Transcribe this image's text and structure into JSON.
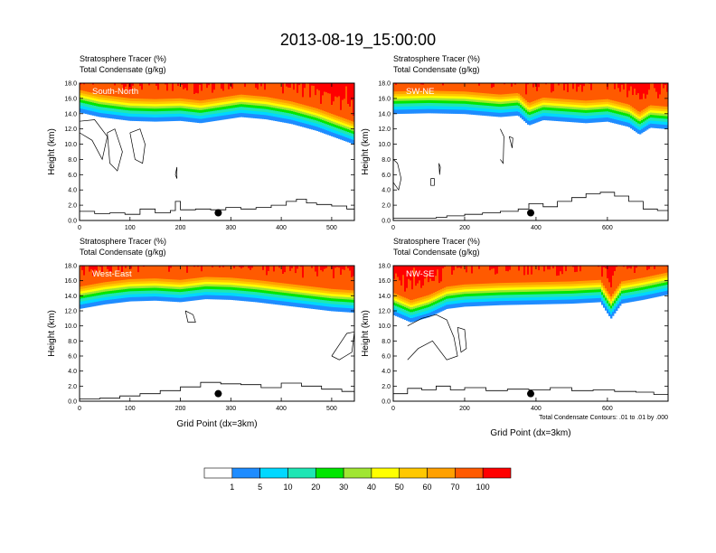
{
  "figure": {
    "title": "2013-08-19_15:00:00",
    "footnote": "Total Condensate Contours: .01 to .01 by .000"
  },
  "colors": {
    "scale": [
      "#ffffff",
      "#1e8cff",
      "#00d8ff",
      "#1ee6b4",
      "#00e600",
      "#a0e632",
      "#ffff00",
      "#ffc800",
      "#ffa000",
      "#ff5a00",
      "#ff0000"
    ]
  },
  "colorbar": {
    "labels": [
      "1",
      "5",
      "10",
      "20",
      "30",
      "40",
      "50",
      "60",
      "70",
      "100"
    ]
  },
  "chart_data": [
    {
      "type": "heatmap",
      "panel_label": "South-North",
      "subtitle_1": "Stratosphere Tracer   (%)",
      "subtitle_2": "Total Condensate   (g/kg)",
      "ylabel": "Height (km)",
      "xlabel": "",
      "xlim": [
        0,
        545
      ],
      "ylim": [
        0,
        18
      ],
      "x_ticks": [
        0,
        100,
        200,
        300,
        400,
        500
      ],
      "y_ticks": [
        "0.0",
        "2.0",
        "4.0",
        "6.0",
        "8.0",
        "10.0",
        "12.0",
        "14.0",
        "16.0",
        "18.0"
      ],
      "tropopause": {
        "x": [
          0,
          40,
          100,
          150,
          200,
          240,
          280,
          320,
          370,
          420,
          470,
          520,
          545
        ],
        "y": [
          14.2,
          13.6,
          13.1,
          13.0,
          13.1,
          12.8,
          13.2,
          13.6,
          13.3,
          12.7,
          11.8,
          10.6,
          10.0
        ]
      },
      "terrain": {
        "x": [
          0,
          30,
          60,
          90,
          120,
          150,
          180,
          190,
          200,
          230,
          260,
          290,
          320,
          350,
          380,
          410,
          430,
          450,
          470,
          500,
          530,
          545
        ],
        "y": [
          1.2,
          0.9,
          1.0,
          0.8,
          1.5,
          1.0,
          1.3,
          2.5,
          1.4,
          1.5,
          1.4,
          1.7,
          1.5,
          1.7,
          2.0,
          2.5,
          2.8,
          2.3,
          2.1,
          1.9,
          1.5,
          1.6
        ]
      },
      "marker": {
        "x": 275,
        "y": 1.0
      },
      "contours": [
        {
          "x": [
            0,
            30,
            55,
            45,
            25,
            0
          ],
          "y": [
            13.0,
            13.2,
            11.0,
            8.0,
            10.5,
            11.5
          ]
        },
        {
          "x": [
            55,
            70,
            85,
            75,
            60,
            55
          ],
          "y": [
            11.5,
            12.0,
            9.0,
            6.5,
            7.5,
            11.5
          ]
        },
        {
          "x": [
            100,
            120,
            130,
            125,
            110,
            100
          ],
          "y": [
            11.5,
            12.0,
            10.0,
            7.5,
            8.0,
            11.5
          ]
        },
        {
          "x": [
            190,
            193,
            193,
            190
          ],
          "y": [
            6.0,
            7.0,
            5.5,
            6.0
          ]
        }
      ]
    },
    {
      "type": "heatmap",
      "panel_label": "SW-NE",
      "subtitle_1": "Stratosphere Tracer   (%)",
      "subtitle_2": "Total Condensate   (g/kg)",
      "ylabel": "Height (km)",
      "xlabel": "",
      "xlim": [
        0,
        770
      ],
      "ylim": [
        0,
        18
      ],
      "x_ticks": [
        0,
        200,
        400,
        600
      ],
      "y_ticks": [
        "0.0",
        "2.0",
        "4.0",
        "6.0",
        "8.0",
        "10.0",
        "12.0",
        "14.0",
        "16.0",
        "18.0"
      ],
      "tropopause": {
        "x": [
          0,
          100,
          200,
          300,
          350,
          380,
          420,
          480,
          540,
          600,
          660,
          690,
          720,
          770
        ],
        "y": [
          14.0,
          14.1,
          14.0,
          13.6,
          13.8,
          12.5,
          13.2,
          13.0,
          12.8,
          13.0,
          12.3,
          11.3,
          12.2,
          12.0
        ]
      },
      "terrain": {
        "x": [
          0,
          60,
          120,
          150,
          200,
          250,
          300,
          350,
          380,
          420,
          460,
          500,
          540,
          580,
          620,
          660,
          700,
          740,
          770
        ],
        "y": [
          0.3,
          0.3,
          0.4,
          0.6,
          0.8,
          1.0,
          1.2,
          1.5,
          2.2,
          1.8,
          2.5,
          3.0,
          3.5,
          3.7,
          3.2,
          2.5,
          1.5,
          1.3,
          1.0
        ]
      },
      "marker": {
        "x": 385,
        "y": 1.0
      },
      "contours": [
        {
          "x": [
            0,
            12,
            22,
            15,
            0
          ],
          "y": [
            8.0,
            7.5,
            5.5,
            4.0,
            5.0
          ]
        },
        {
          "x": [
            105,
            115,
            115,
            105,
            105
          ],
          "y": [
            5.5,
            5.5,
            4.6,
            4.6,
            5.5
          ]
        },
        {
          "x": [
            128,
            132,
            130,
            128
          ],
          "y": [
            7.5,
            7.0,
            6.0,
            7.5
          ]
        },
        {
          "x": [
            300,
            310,
            308,
            300
          ],
          "y": [
            12.0,
            11.0,
            7.5,
            8.0
          ]
        },
        {
          "x": [
            325,
            335,
            333,
            325
          ],
          "y": [
            11.0,
            10.8,
            9.5,
            11.0
          ]
        }
      ]
    },
    {
      "type": "heatmap",
      "panel_label": "West-East",
      "subtitle_1": "Stratosphere Tracer   (%)",
      "subtitle_2": "Total Condensate   (g/kg)",
      "ylabel": "Height (km)",
      "xlabel": "Grid Point (dx=3km)",
      "xlim": [
        0,
        545
      ],
      "ylim": [
        0,
        18
      ],
      "x_ticks": [
        0,
        100,
        200,
        300,
        400,
        500
      ],
      "y_ticks": [
        "0.0",
        "2.0",
        "4.0",
        "6.0",
        "8.0",
        "10.0",
        "12.0",
        "14.0",
        "16.0",
        "18.0"
      ],
      "tropopause": {
        "x": [
          0,
          50,
          100,
          150,
          200,
          250,
          300,
          350,
          400,
          450,
          500,
          545
        ],
        "y": [
          12.3,
          12.9,
          13.3,
          13.4,
          13.2,
          13.6,
          13.5,
          13.2,
          12.8,
          12.4,
          12.0,
          11.8
        ]
      },
      "terrain": {
        "x": [
          0,
          40,
          80,
          120,
          160,
          200,
          240,
          280,
          320,
          360,
          400,
          440,
          480,
          520,
          545
        ],
        "y": [
          0.3,
          0.4,
          0.7,
          1.0,
          1.4,
          1.9,
          2.5,
          2.3,
          2.2,
          1.8,
          2.4,
          2.0,
          1.6,
          1.3,
          1.2
        ]
      },
      "marker": {
        "x": 275,
        "y": 1.0
      },
      "contours": [
        {
          "x": [
            210,
            225,
            230,
            215,
            210
          ],
          "y": [
            12.0,
            11.5,
            10.5,
            10.5,
            12.0
          ]
        },
        {
          "x": [
            500,
            530,
            545,
            540,
            515,
            500
          ],
          "y": [
            6.0,
            9.0,
            9.2,
            6.5,
            5.5,
            6.0
          ]
        }
      ]
    },
    {
      "type": "heatmap",
      "panel_label": "NW-SE",
      "subtitle_1": "Stratosphere Tracer   (%)",
      "subtitle_2": "Total Condensate   (g/kg)",
      "ylabel": "Height (km)",
      "xlabel": "Grid Point (dx=3km)",
      "xlim": [
        0,
        770
      ],
      "ylim": [
        0,
        18
      ],
      "x_ticks": [
        0,
        200,
        400,
        600
      ],
      "y_ticks": [
        "0.0",
        "2.0",
        "4.0",
        "6.0",
        "8.0",
        "10.0",
        "12.0",
        "14.0",
        "16.0",
        "18.0"
      ],
      "tropopause": {
        "x": [
          0,
          50,
          100,
          150,
          200,
          300,
          400,
          500,
          580,
          610,
          640,
          700,
          770
        ],
        "y": [
          11.5,
          10.5,
          11.2,
          12.3,
          12.6,
          12.8,
          12.9,
          13.0,
          13.2,
          11.0,
          13.0,
          13.5,
          14.2
        ]
      },
      "terrain": {
        "x": [
          0,
          40,
          80,
          120,
          160,
          200,
          260,
          320,
          380,
          440,
          500,
          560,
          620,
          680,
          730,
          770
        ],
        "y": [
          1.0,
          1.7,
          1.5,
          2.0,
          1.5,
          1.8,
          1.4,
          1.6,
          1.5,
          1.8,
          1.4,
          1.5,
          1.3,
          1.2,
          0.9,
          0.5
        ]
      },
      "marker": {
        "x": 385,
        "y": 1.0
      },
      "contours": [
        {
          "x": [
            40,
            80,
            120,
            150,
            170,
            180,
            150,
            110,
            70,
            40
          ],
          "y": [
            10.0,
            11.0,
            11.5,
            10.8,
            8.5,
            6.0,
            5.5,
            8.0,
            7.0,
            5.5
          ]
        },
        {
          "x": [
            180,
            200,
            205,
            190,
            180
          ],
          "y": [
            9.8,
            9.5,
            7.0,
            6.5,
            9.8
          ]
        }
      ]
    }
  ]
}
